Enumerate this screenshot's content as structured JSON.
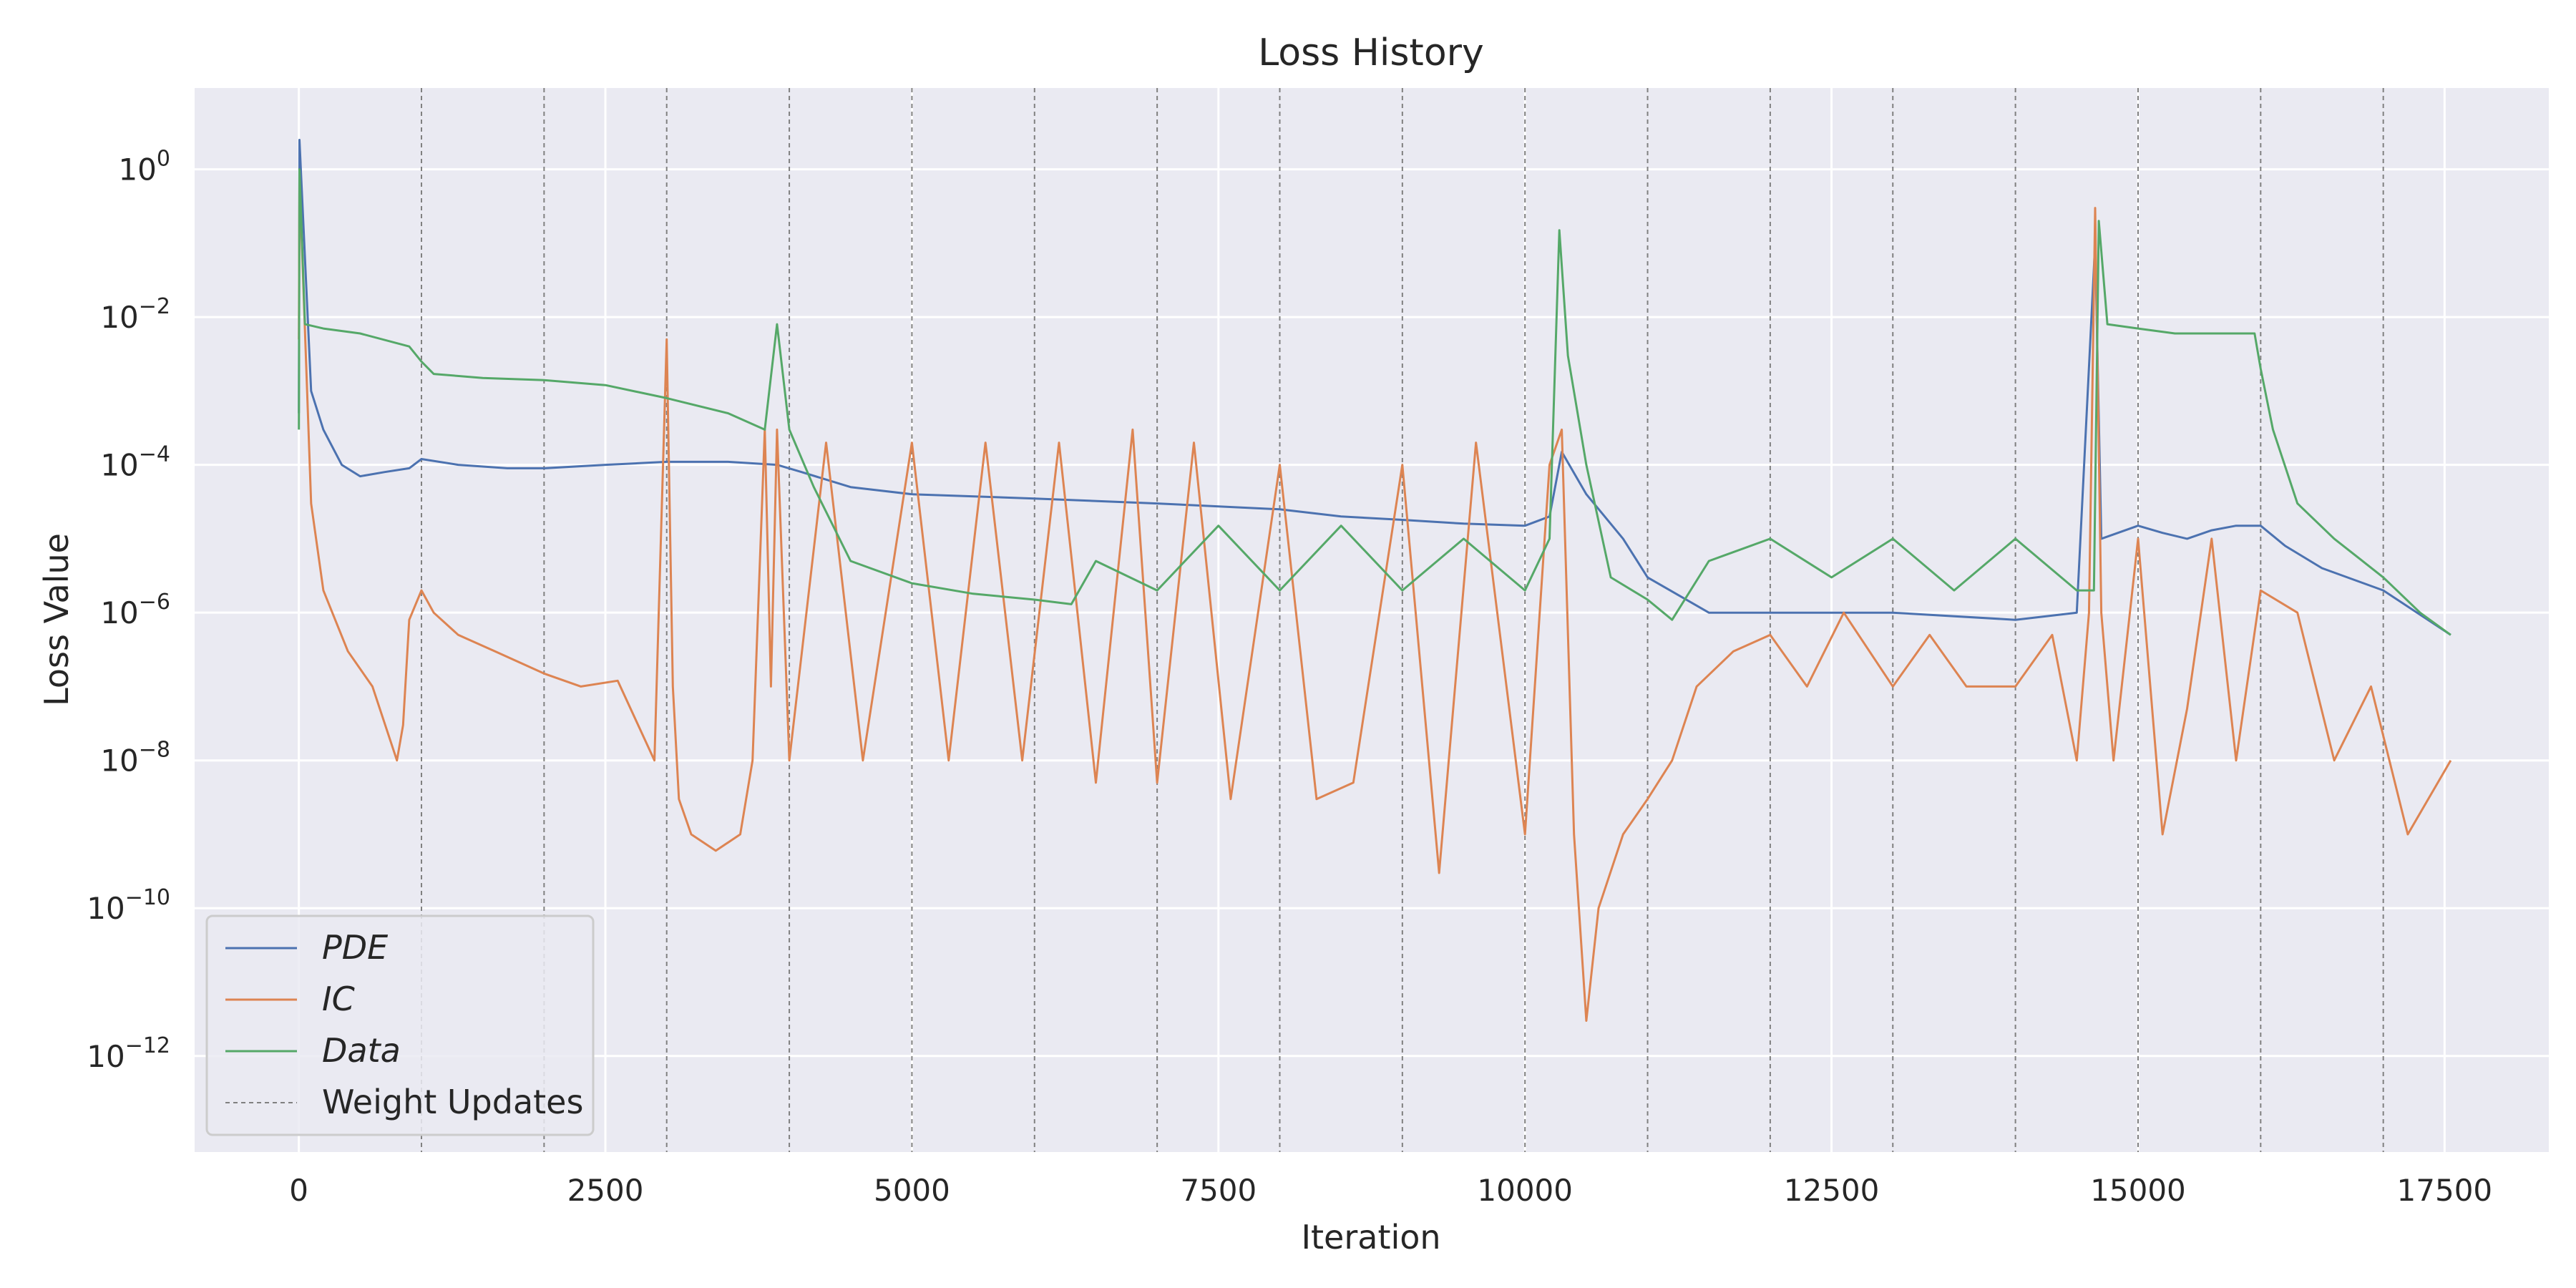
{
  "chart_data": {
    "type": "line",
    "title": "Loss History",
    "xlabel": "Iteration",
    "ylabel": "Loss Value",
    "xlim": [
      -850,
      18350
    ],
    "ylim_log10": [
      -13.3,
      1.1
    ],
    "yscale": "log",
    "grid": true,
    "legend_position": "lower-left",
    "background": "#eaeaf2",
    "x_ticks": [
      {
        "value": 0,
        "label": "0"
      },
      {
        "value": 2500,
        "label": "2500"
      },
      {
        "value": 5000,
        "label": "5000"
      },
      {
        "value": 7500,
        "label": "7500"
      },
      {
        "value": 10000,
        "label": "10000"
      },
      {
        "value": 12500,
        "label": "12500"
      },
      {
        "value": 15000,
        "label": "15000"
      },
      {
        "value": 17500,
        "label": "17500"
      }
    ],
    "y_ticks": [
      {
        "exp": 0,
        "base": "10",
        "sup": "0"
      },
      {
        "exp": -2,
        "base": "10",
        "sup": "−2"
      },
      {
        "exp": -4,
        "base": "10",
        "sup": "−4"
      },
      {
        "exp": -6,
        "base": "10",
        "sup": "−6"
      },
      {
        "exp": -8,
        "base": "10",
        "sup": "−8"
      },
      {
        "exp": -10,
        "base": "10",
        "sup": "−10"
      },
      {
        "exp": -12,
        "base": "10",
        "sup": "−12"
      }
    ],
    "weight_updates": {
      "name": "Weight Updates",
      "color": "#808080",
      "x": [
        1000,
        2000,
        3000,
        4000,
        5000,
        6000,
        7000,
        8000,
        9000,
        10000,
        11000,
        12000,
        13000,
        14000,
        15000,
        16000,
        17000
      ]
    },
    "series": [
      {
        "name": "PDE",
        "color": "#4c72b0",
        "x": [
          0,
          5,
          100,
          200,
          350,
          500,
          700,
          900,
          1000,
          1300,
          1700,
          2000,
          2500,
          3000,
          3500,
          3900,
          4100,
          4500,
          5000,
          6000,
          7000,
          8000,
          8500,
          9000,
          9500,
          10000,
          10200,
          10300,
          10500,
          10800,
          11000,
          11500,
          12000,
          13000,
          14000,
          14500,
          14650,
          14700,
          15000,
          15200,
          15400,
          15600,
          15800,
          16000,
          16200,
          16500,
          17000,
          17550
        ],
        "y": [
          0.0005,
          2.5,
          0.001,
          0.0003,
          0.0001,
          7e-05,
          8e-05,
          9e-05,
          0.00012,
          0.0001,
          9e-05,
          9e-05,
          0.0001,
          0.00011,
          0.00011,
          0.0001,
          8e-05,
          5e-05,
          4e-05,
          3.5e-05,
          3e-05,
          2.5e-05,
          2e-05,
          1.8e-05,
          1.6e-05,
          1.5e-05,
          2e-05,
          0.00015,
          4e-05,
          1e-05,
          3e-06,
          1e-06,
          1e-06,
          1e-06,
          8e-07,
          1e-06,
          0.1,
          1e-05,
          1.5e-05,
          1.2e-05,
          1e-05,
          1.3e-05,
          1.5e-05,
          1.5e-05,
          8e-06,
          4e-06,
          2e-06,
          5e-07
        ]
      },
      {
        "name": "IC",
        "color": "#dd8452",
        "x": [
          0,
          5,
          100,
          200,
          400,
          600,
          800,
          850,
          900,
          1000,
          1100,
          1300,
          1600,
          2000,
          2300,
          2600,
          2900,
          3000,
          3050,
          3100,
          3200,
          3400,
          3600,
          3700,
          3800,
          3850,
          3900,
          4000,
          4300,
          4600,
          5000,
          5300,
          5600,
          5900,
          6200,
          6500,
          6800,
          7000,
          7300,
          7600,
          8000,
          8300,
          8600,
          9000,
          9300,
          9600,
          10000,
          10200,
          10300,
          10400,
          10500,
          10600,
          10800,
          11000,
          11200,
          11400,
          11700,
          12000,
          12300,
          12600,
          13000,
          13300,
          13600,
          14000,
          14300,
          14500,
          14600,
          14650,
          14700,
          14800,
          15000,
          15200,
          15400,
          15600,
          15800,
          16000,
          16300,
          16600,
          16900,
          17200,
          17550
        ],
        "y": [
          0.005,
          0.8,
          3e-05,
          2e-06,
          3e-07,
          1e-07,
          1e-08,
          3e-08,
          8e-07,
          2e-06,
          1e-06,
          5e-07,
          3e-07,
          1.5e-07,
          1e-07,
          1.2e-07,
          1e-08,
          0.005,
          1e-07,
          3e-09,
          1e-09,
          6e-10,
          1e-09,
          1e-08,
          0.0003,
          1e-07,
          0.0003,
          1e-08,
          0.0002,
          1e-08,
          0.0002,
          1e-08,
          0.0002,
          1e-08,
          0.0002,
          5e-09,
          0.0003,
          5e-09,
          0.0002,
          3e-09,
          0.0001,
          3e-09,
          5e-09,
          0.0001,
          3e-10,
          0.0002,
          1e-09,
          0.0001,
          0.0003,
          1e-09,
          3e-12,
          1e-10,
          1e-09,
          3e-09,
          1e-08,
          1e-07,
          3e-07,
          5e-07,
          1e-07,
          1e-06,
          1e-07,
          5e-07,
          1e-07,
          1e-07,
          5e-07,
          1e-08,
          1e-06,
          0.3,
          1e-06,
          1e-08,
          1e-05,
          1e-09,
          5e-08,
          1e-05,
          1e-08,
          2e-06,
          1e-06,
          1e-08,
          1e-07,
          1e-09,
          1e-08
        ]
      },
      {
        "name": "Data",
        "color": "#55a868",
        "x": [
          0,
          5,
          50,
          200,
          500,
          900,
          1000,
          1100,
          1500,
          2000,
          2500,
          3000,
          3500,
          3800,
          3900,
          4000,
          4200,
          4500,
          5000,
          5500,
          6000,
          6300,
          6500,
          7000,
          7500,
          8000,
          8500,
          9000,
          9500,
          10000,
          10200,
          10280,
          10350,
          10500,
          10700,
          11000,
          11200,
          11500,
          12000,
          12500,
          13000,
          13500,
          14000,
          14500,
          14640,
          14680,
          14750,
          15000,
          15300,
          15600,
          15800,
          15950,
          16000,
          16100,
          16300,
          16600,
          17000,
          17300,
          17550
        ],
        "y": [
          0.0003,
          1.0,
          0.008,
          0.007,
          0.006,
          0.004,
          0.0025,
          0.0017,
          0.0015,
          0.0014,
          0.0012,
          0.0008,
          0.0005,
          0.0003,
          0.008,
          0.0003,
          5e-05,
          5e-06,
          2.5e-06,
          1.8e-06,
          1.5e-06,
          1.3e-06,
          5e-06,
          2e-06,
          1.5e-05,
          2e-06,
          1.5e-05,
          2e-06,
          1e-05,
          2e-06,
          1e-05,
          0.15,
          0.003,
          0.0001,
          3e-06,
          1.5e-06,
          8e-07,
          5e-06,
          1e-05,
          3e-06,
          1e-05,
          2e-06,
          1e-05,
          2e-06,
          2e-06,
          0.2,
          0.008,
          0.007,
          0.006,
          0.006,
          0.006,
          0.006,
          0.002,
          0.0003,
          3e-05,
          1e-05,
          3e-06,
          1e-06,
          5e-07
        ]
      }
    ]
  }
}
